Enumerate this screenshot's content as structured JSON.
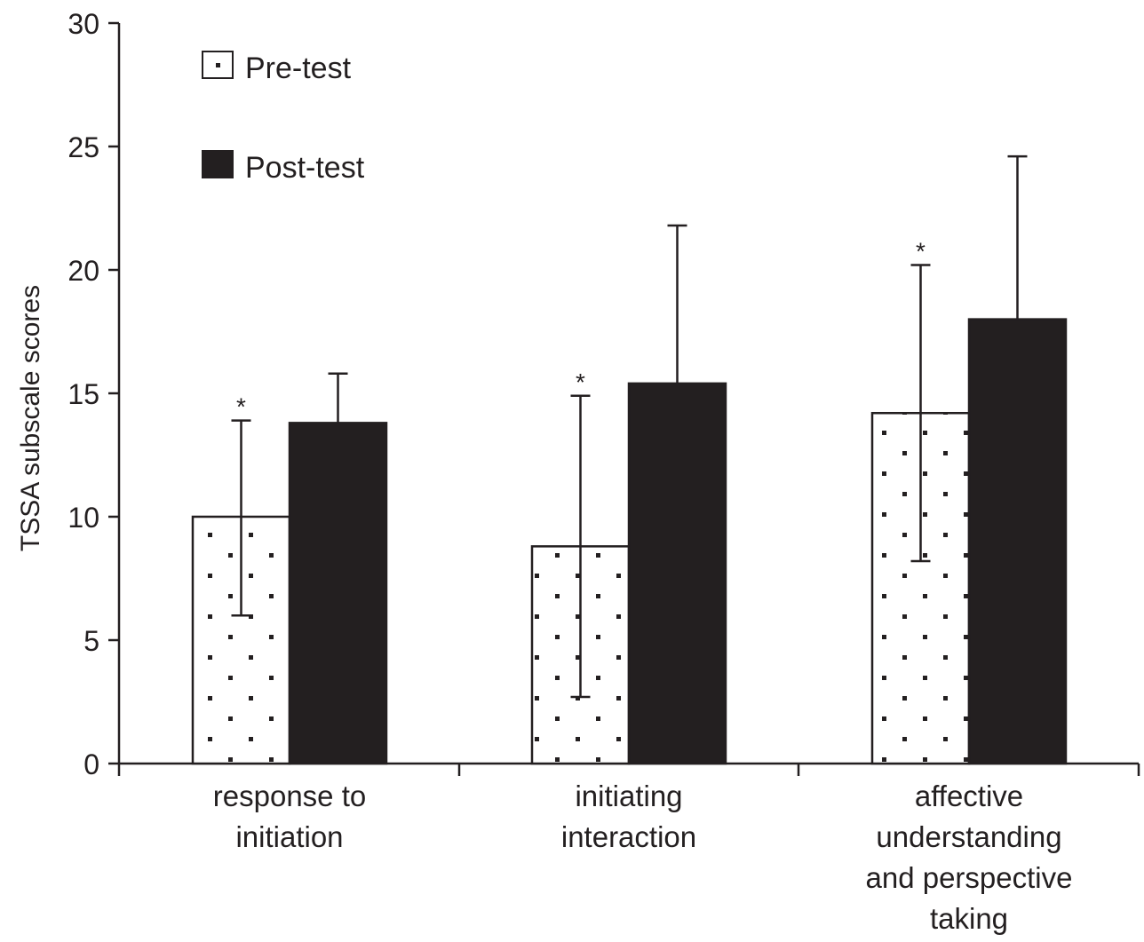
{
  "chart_data": {
    "type": "bar",
    "title": "",
    "xlabel": "",
    "ylabel": "TSSA subscale scores",
    "ylim": [
      0,
      30
    ],
    "yticks": [
      0,
      5,
      10,
      15,
      20,
      25,
      30
    ],
    "grid": false,
    "legend_position": "top-left",
    "categories": [
      [
        "response to",
        "initiation"
      ],
      [
        "initiating",
        "interaction"
      ],
      [
        "affective",
        "understanding",
        "and perspective",
        "taking"
      ]
    ],
    "series": [
      {
        "name": "Pre-test",
        "pattern": "dotted",
        "fill": "#ffffff",
        "values": [
          10.0,
          8.8,
          14.2
        ],
        "error_upper": [
          13.9,
          14.9,
          20.2
        ],
        "error_lower": [
          6.0,
          2.7,
          8.2
        ],
        "significance": [
          "*",
          "*",
          "*"
        ]
      },
      {
        "name": "Post-test",
        "pattern": "solid",
        "fill": "#231f20",
        "values": [
          13.8,
          15.4,
          18.0
        ],
        "error_upper": [
          15.8,
          21.8,
          24.6
        ],
        "error_lower": [
          null,
          null,
          null
        ],
        "significance": [
          "",
          "",
          ""
        ]
      }
    ]
  },
  "colors": {
    "ink": "#231f20",
    "background": "#ffffff"
  }
}
